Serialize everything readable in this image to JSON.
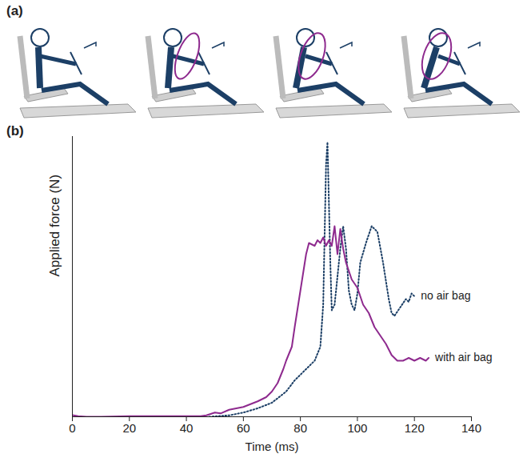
{
  "panel_labels": [
    "(a)",
    "(b)"
  ],
  "chart_data": {
    "type": "line",
    "x_label": "Time (ms)",
    "y_label": "Applied force (N)",
    "xlim": [
      0,
      140
    ],
    "xticks": [
      0,
      20,
      40,
      60,
      80,
      100,
      120,
      140
    ],
    "ylim": [
      0,
      100
    ],
    "tick_labels": "x",
    "grid": false,
    "series": [
      {
        "name": "no air bag",
        "color": "#1c3f66",
        "line_style": "dotted",
        "x": [
          48,
          55,
          60,
          65,
          70,
          75,
          78,
          80,
          83,
          85,
          87,
          88,
          89,
          89.5,
          90.5,
          91,
          92,
          93,
          94,
          95,
          96,
          97,
          98,
          99,
          100,
          101,
          103,
          105,
          107,
          109,
          111,
          112,
          113,
          115,
          117,
          118,
          119,
          120
        ],
        "values": [
          0,
          0.5,
          1.5,
          3,
          5,
          9,
          13,
          15,
          18,
          20,
          25,
          40,
          90,
          98,
          55,
          38,
          40,
          50,
          60,
          68,
          60,
          45,
          40,
          38,
          44,
          55,
          62,
          68,
          66,
          55,
          42,
          37,
          36,
          39,
          42,
          41,
          44,
          43
        ]
      },
      {
        "name": "with air bag",
        "color": "#8e2a8e",
        "line_style": "solid",
        "x": [
          0,
          2,
          5,
          10,
          20,
          30,
          40,
          45,
          47,
          50,
          52,
          55,
          60,
          65,
          68,
          70,
          72,
          74,
          75,
          77,
          78,
          80,
          82,
          83,
          85,
          86,
          87,
          88,
          89,
          90,
          91,
          92,
          93,
          94,
          95,
          96,
          97,
          98,
          100,
          102,
          104,
          106,
          108,
          110,
          112,
          114,
          116,
          118,
          120,
          122,
          124,
          125
        ],
        "values": [
          0.6,
          0.2,
          0,
          0,
          0.2,
          0.2,
          0.2,
          0.2,
          0.5,
          1.5,
          1.2,
          2.5,
          3.5,
          5.5,
          7,
          9,
          12,
          17,
          20,
          25,
          32,
          45,
          58,
          62,
          61,
          63,
          62,
          64,
          61,
          63,
          61,
          68,
          58,
          67,
          60,
          55,
          52,
          49,
          46,
          40,
          37,
          32,
          29,
          26,
          22,
          20,
          20,
          21,
          20,
          21,
          20,
          21
        ]
      }
    ]
  }
}
